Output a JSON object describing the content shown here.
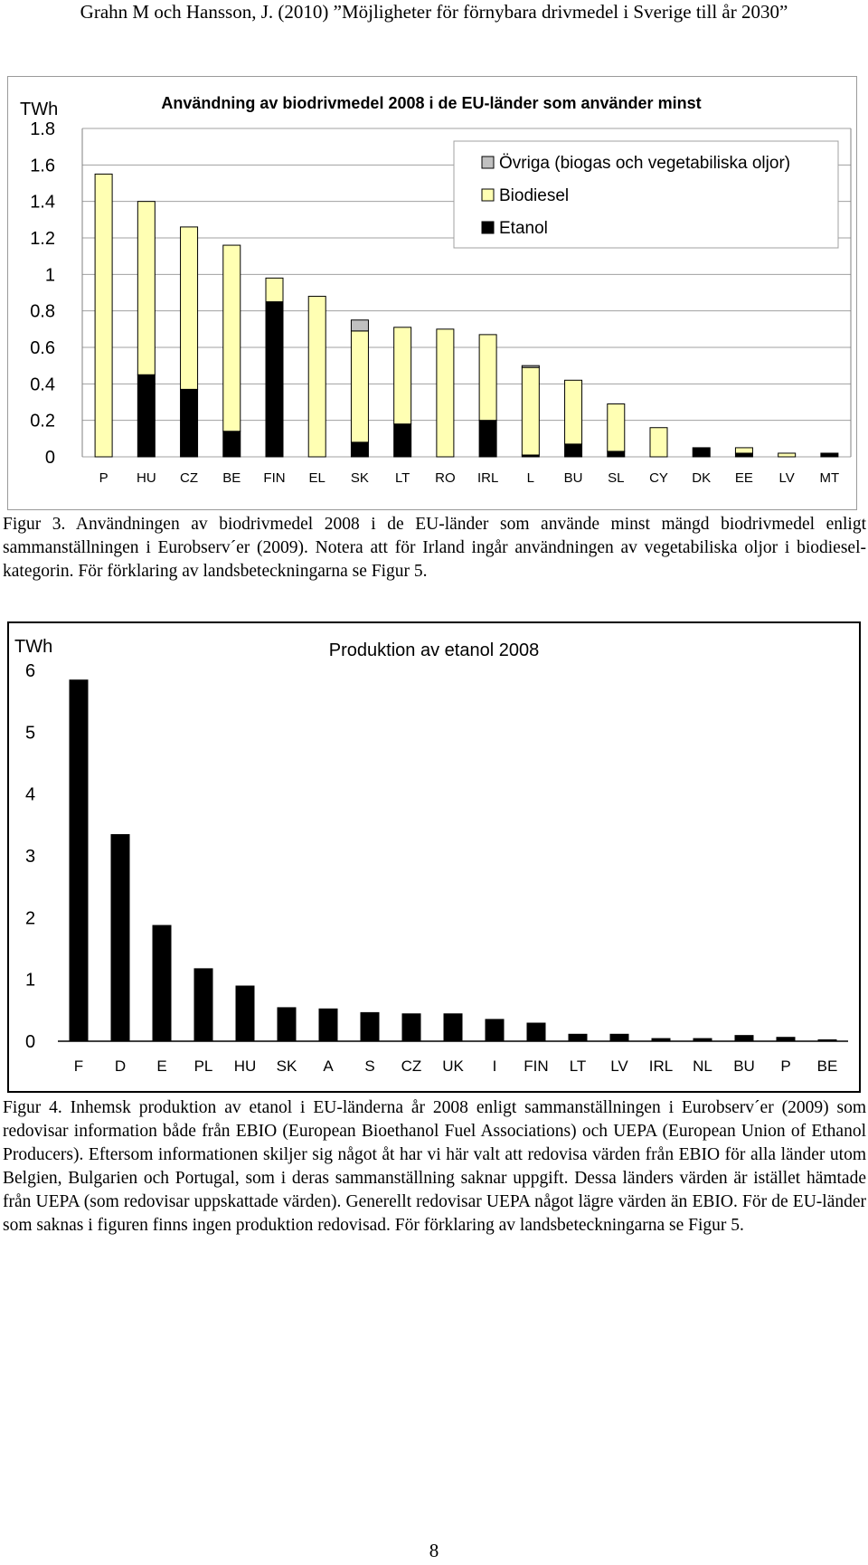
{
  "header": {
    "text": "Grahn M och Hansson, J. (2010) ”Möjligheter för förnybara drivmedel i Sverige till år 2030”"
  },
  "chart_data": [
    {
      "type": "bar",
      "stacked": true,
      "title": "Användning av biodrivmedel 2008 i de EU-länder som använder minst",
      "ylabel": "TWh",
      "xlabel": "",
      "ylim": [
        0,
        1.8
      ],
      "yticks": [
        0,
        0.2,
        0.4,
        0.6,
        0.8,
        1,
        1.2,
        1.4,
        1.6,
        1.8
      ],
      "ytick_labels": [
        "0",
        "0.2",
        "0.4",
        "0.6",
        "0.8",
        "1",
        "1.2",
        "1.4",
        "1.6",
        "1.8"
      ],
      "grid": true,
      "legend_position": "top-right",
      "categories": [
        "P",
        "HU",
        "CZ",
        "BE",
        "FIN",
        "EL",
        "SK",
        "LT",
        "RO",
        "IRL",
        "L",
        "BU",
        "SL",
        "CY",
        "DK",
        "EE",
        "LV",
        "MT"
      ],
      "series": [
        {
          "name": "Etanol",
          "color": "#000000",
          "values": [
            0,
            0.45,
            0.37,
            0.14,
            0.85,
            0,
            0.08,
            0.18,
            0,
            0.2,
            0.01,
            0.07,
            0.03,
            0,
            0.05,
            0.02,
            0,
            0.02
          ]
        },
        {
          "name": "Biodiesel",
          "color": "#ffffb3",
          "values": [
            1.55,
            0.95,
            0.89,
            1.02,
            0.13,
            0.88,
            0.61,
            0.53,
            0.7,
            0.47,
            0.48,
            0.35,
            0.26,
            0.16,
            0,
            0.03,
            0.02,
            0
          ]
        },
        {
          "name": "Övriga (biogas och vegetabiliska oljor)",
          "color": "#c0c0c0",
          "values": [
            0,
            0,
            0,
            0,
            0,
            0,
            0.06,
            0,
            0,
            0,
            0.01,
            0,
            0,
            0,
            0,
            0,
            0,
            0
          ]
        }
      ],
      "legend_order": [
        "Övriga (biogas och vegetabiliska oljor)",
        "Biodiesel",
        "Etanol"
      ]
    },
    {
      "type": "bar",
      "title": "Produktion av etanol 2008",
      "ylabel": "TWh",
      "xlabel": "",
      "ylim": [
        0,
        6
      ],
      "yticks": [
        0,
        1,
        2,
        3,
        4,
        5,
        6
      ],
      "ytick_labels": [
        "0",
        "1",
        "2",
        "3",
        "4",
        "5",
        "6"
      ],
      "grid": false,
      "categories": [
        "F",
        "D",
        "E",
        "PL",
        "HU",
        "SK",
        "A",
        "S",
        "CZ",
        "UK",
        "I",
        "FIN",
        "LT",
        "LV",
        "IRL",
        "NL",
        "BU",
        "P",
        "BE"
      ],
      "values": [
        5.85,
        3.35,
        1.88,
        1.18,
        0.9,
        0.55,
        0.53,
        0.47,
        0.45,
        0.45,
        0.36,
        0.3,
        0.12,
        0.12,
        0.05,
        0.05,
        0.1,
        0.07,
        0.03
      ],
      "color": "#000000"
    }
  ],
  "captions": {
    "fig3": "Figur 3. Användningen av biodrivmedel 2008 i de EU-länder som använde minst mängd biodrivmedel enligt sammanställningen i Eurobserv´er (2009). Notera att för Irland ingår användningen av vegetabiliska oljor i biodiesel-kategorin. För förklaring av landsbeteckningarna se Figur 5.",
    "fig4": "Figur 4. Inhemsk produktion av etanol i EU-länderna år 2008 enligt sammanställningen i Eurobserv´er (2009) som redovisar information både från EBIO (European Bioethanol Fuel Associations) och UEPA (European Union of Ethanol Producers). Eftersom informationen skiljer sig något åt har vi här valt att redovisa värden från EBIO för alla länder utom Belgien, Bulgarien och Portugal, som i deras sammanställning saknar uppgift. Dessa länders värden är istället hämtade från UEPA (som redovisar uppskattade värden). Generellt redovisar UEPA något lägre värden än EBIO. För de EU-länder som saknas i figuren finns ingen produktion redovisad. För förklaring av landsbeteckningarna se Figur 5."
  },
  "page_number": "8"
}
